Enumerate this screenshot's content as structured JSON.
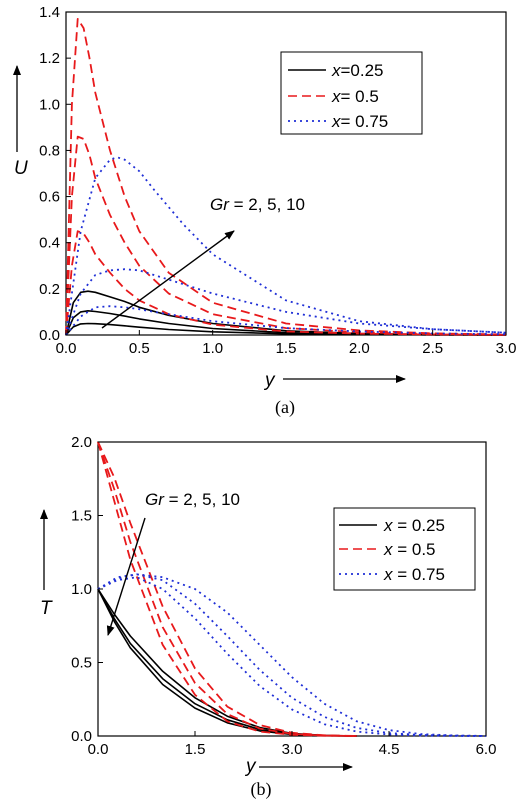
{
  "chart_data": [
    {
      "type": "line",
      "panel_label": "(a)",
      "ylabel": "U",
      "xlabel": "y",
      "xlim": [
        0.0,
        3.0
      ],
      "ylim": [
        0.0,
        1.4
      ],
      "xticks": [
        "0.0",
        "0.5",
        "1.0",
        "1.5",
        "2.0",
        "2.5",
        "3.0"
      ],
      "yticks": [
        "0.0",
        "0.2",
        "0.4",
        "0.6",
        "0.8",
        "1.0",
        "1.2",
        "1.4"
      ],
      "legend_position": "top-right",
      "legend": [
        {
          "name_prefix": "x",
          "name_value": "=0.25",
          "style": "solid",
          "color": "#000000"
        },
        {
          "name_prefix": "x",
          "name_value": "= 0.5",
          "style": "dash",
          "color": "#e8191b"
        },
        {
          "name_prefix": "x",
          "name_value": "= 0.75",
          "style": "dot",
          "color": "#1f2fd6"
        }
      ],
      "annotation": {
        "italic": "Gr",
        "rest": " = 2, 5, 10"
      },
      "series": [
        {
          "group": 0,
          "gr": 2,
          "x": [
            0,
            0.05,
            0.1,
            0.15,
            0.2,
            0.3,
            0.4,
            0.5,
            0.7,
            1.0,
            1.5,
            2.0,
            2.5,
            3.0
          ],
          "y": [
            0,
            0.035,
            0.048,
            0.05,
            0.049,
            0.045,
            0.04,
            0.034,
            0.024,
            0.014,
            0.005,
            0.002,
            0.001,
            0
          ]
        },
        {
          "group": 0,
          "gr": 5,
          "x": [
            0,
            0.05,
            0.1,
            0.15,
            0.2,
            0.3,
            0.4,
            0.5,
            0.7,
            1.0,
            1.5,
            2.0,
            2.5,
            3.0
          ],
          "y": [
            0,
            0.075,
            0.1,
            0.105,
            0.102,
            0.093,
            0.082,
            0.07,
            0.05,
            0.028,
            0.01,
            0.004,
            0.001,
            0
          ]
        },
        {
          "group": 0,
          "gr": 10,
          "x": [
            0,
            0.05,
            0.1,
            0.15,
            0.2,
            0.3,
            0.4,
            0.5,
            0.7,
            1.0,
            1.5,
            2.0,
            2.5,
            3.0
          ],
          "y": [
            0,
            0.14,
            0.185,
            0.19,
            0.185,
            0.165,
            0.145,
            0.12,
            0.085,
            0.05,
            0.018,
            0.006,
            0.002,
            0
          ]
        },
        {
          "group": 1,
          "gr": 2,
          "x": [
            0,
            0.04,
            0.08,
            0.12,
            0.16,
            0.2,
            0.3,
            0.4,
            0.5,
            0.7,
            1.0,
            1.5,
            2.0,
            2.5,
            3.0
          ],
          "y": [
            0,
            0.3,
            0.45,
            0.44,
            0.4,
            0.35,
            0.27,
            0.2,
            0.15,
            0.09,
            0.045,
            0.015,
            0.006,
            0.002,
            0.001
          ]
        },
        {
          "group": 1,
          "gr": 5,
          "x": [
            0,
            0.04,
            0.08,
            0.12,
            0.16,
            0.2,
            0.3,
            0.4,
            0.5,
            0.7,
            1.0,
            1.5,
            2.0,
            2.5,
            3.0
          ],
          "y": [
            0,
            0.6,
            0.86,
            0.85,
            0.78,
            0.68,
            0.52,
            0.4,
            0.3,
            0.18,
            0.09,
            0.03,
            0.012,
            0.004,
            0.001
          ]
        },
        {
          "group": 1,
          "gr": 10,
          "x": [
            0,
            0.04,
            0.08,
            0.12,
            0.16,
            0.2,
            0.3,
            0.4,
            0.5,
            0.7,
            1.0,
            1.5,
            2.0,
            2.5,
            3.0
          ],
          "y": [
            0,
            1.0,
            1.37,
            1.33,
            1.2,
            1.05,
            0.8,
            0.6,
            0.45,
            0.27,
            0.14,
            0.05,
            0.02,
            0.007,
            0.002
          ]
        },
        {
          "group": 2,
          "gr": 2,
          "x": [
            0,
            0.1,
            0.2,
            0.3,
            0.4,
            0.5,
            0.6,
            0.8,
            1.0,
            1.5,
            2.0,
            2.5,
            3.0
          ],
          "y": [
            0,
            0.08,
            0.12,
            0.125,
            0.12,
            0.112,
            0.1,
            0.08,
            0.06,
            0.03,
            0.015,
            0.007,
            0.003
          ]
        },
        {
          "group": 2,
          "gr": 5,
          "x": [
            0,
            0.1,
            0.2,
            0.3,
            0.4,
            0.5,
            0.6,
            0.8,
            1.0,
            1.5,
            2.0,
            2.5,
            3.0
          ],
          "y": [
            0,
            0.18,
            0.26,
            0.28,
            0.285,
            0.28,
            0.26,
            0.22,
            0.18,
            0.1,
            0.05,
            0.025,
            0.01
          ]
        },
        {
          "group": 2,
          "gr": 10,
          "x": [
            0,
            0.1,
            0.2,
            0.3,
            0.35,
            0.4,
            0.5,
            0.6,
            0.8,
            1.0,
            1.5,
            2.0,
            2.5,
            3.0
          ],
          "y": [
            0,
            0.45,
            0.68,
            0.76,
            0.77,
            0.76,
            0.71,
            0.63,
            0.48,
            0.35,
            0.15,
            0.06,
            0.025,
            0.01
          ]
        }
      ]
    },
    {
      "type": "line",
      "panel_label": "(b)",
      "ylabel": "T",
      "xlabel": "y",
      "xlim": [
        0.0,
        6.0
      ],
      "ylim": [
        0.0,
        2.0
      ],
      "xticks": [
        "0.0",
        "1.5",
        "3.0",
        "4.5",
        "6.0"
      ],
      "yticks": [
        "0.0",
        "0.5",
        "1.0",
        "1.5",
        "2.0"
      ],
      "legend_position": "top-right",
      "legend": [
        {
          "name_prefix": "x",
          "name_value": " = 0.25",
          "style": "solid",
          "color": "#000000"
        },
        {
          "name_prefix": "x",
          "name_value": " = 0.5",
          "style": "dash",
          "color": "#e8191b"
        },
        {
          "name_prefix": "x",
          "name_value": " = 0.75",
          "style": "dot",
          "color": "#1f2fd6"
        }
      ],
      "annotation": {
        "italic": "Gr",
        "rest": " = 2, 5, 10"
      },
      "series": [
        {
          "group": 0,
          "gr": 2,
          "x": [
            0,
            0.25,
            0.5,
            1.0,
            1.5,
            2.0,
            2.5,
            3.0,
            3.5,
            4.0
          ],
          "y": [
            1.0,
            0.78,
            0.6,
            0.35,
            0.19,
            0.09,
            0.035,
            0.01,
            0.002,
            0
          ]
        },
        {
          "group": 0,
          "gr": 5,
          "x": [
            0,
            0.25,
            0.5,
            1.0,
            1.5,
            2.0,
            2.5,
            3.0,
            3.5,
            4.0
          ],
          "y": [
            1.0,
            0.8,
            0.63,
            0.39,
            0.22,
            0.11,
            0.045,
            0.014,
            0.003,
            0
          ]
        },
        {
          "group": 0,
          "gr": 10,
          "x": [
            0,
            0.25,
            0.5,
            1.0,
            1.5,
            2.0,
            2.5,
            3.0,
            3.5,
            4.0
          ],
          "y": [
            1.0,
            0.83,
            0.68,
            0.44,
            0.26,
            0.135,
            0.058,
            0.018,
            0.004,
            0
          ]
        },
        {
          "group": 1,
          "gr": 2,
          "x": [
            0,
            0.25,
            0.5,
            1.0,
            1.5,
            2.0,
            2.5,
            3.0,
            3.5,
            4.0
          ],
          "y": [
            2.0,
            1.6,
            1.2,
            0.62,
            0.28,
            0.1,
            0.03,
            0.008,
            0.002,
            0
          ]
        },
        {
          "group": 1,
          "gr": 5,
          "x": [
            0,
            0.25,
            0.5,
            1.0,
            1.5,
            2.0,
            2.5,
            3.0,
            3.5,
            4.0
          ],
          "y": [
            2.0,
            1.68,
            1.32,
            0.74,
            0.36,
            0.15,
            0.05,
            0.014,
            0.003,
            0
          ]
        },
        {
          "group": 1,
          "gr": 10,
          "x": [
            0,
            0.25,
            0.5,
            1.0,
            1.5,
            2.0,
            2.5,
            3.0,
            3.5,
            4.0
          ],
          "y": [
            2.0,
            1.76,
            1.45,
            0.88,
            0.46,
            0.2,
            0.075,
            0.022,
            0.005,
            0
          ]
        },
        {
          "group": 2,
          "gr": 2,
          "x": [
            0,
            0.3,
            0.6,
            1.0,
            1.5,
            2.0,
            2.5,
            3.0,
            3.5,
            4.0,
            4.5,
            5.0,
            5.5,
            6.0
          ],
          "y": [
            1.0,
            1.06,
            1.08,
            1.0,
            0.8,
            0.56,
            0.34,
            0.18,
            0.08,
            0.03,
            0.01,
            0.003,
            0.001,
            0
          ]
        },
        {
          "group": 2,
          "gr": 5,
          "x": [
            0,
            0.3,
            0.6,
            1.0,
            1.5,
            2.0,
            2.5,
            3.0,
            3.5,
            4.0,
            4.5,
            5.0,
            5.5,
            6.0
          ],
          "y": [
            1.0,
            1.07,
            1.1,
            1.06,
            0.9,
            0.68,
            0.45,
            0.26,
            0.13,
            0.055,
            0.02,
            0.007,
            0.002,
            0
          ]
        },
        {
          "group": 2,
          "gr": 10,
          "x": [
            0,
            0.3,
            0.6,
            1.0,
            1.5,
            2.0,
            2.5,
            3.0,
            3.5,
            4.0,
            4.5,
            5.0,
            5.5,
            6.0
          ],
          "y": [
            1.0,
            1.08,
            1.1,
            1.08,
            1.0,
            0.84,
            0.62,
            0.4,
            0.22,
            0.1,
            0.04,
            0.013,
            0.004,
            0
          ]
        }
      ]
    }
  ]
}
